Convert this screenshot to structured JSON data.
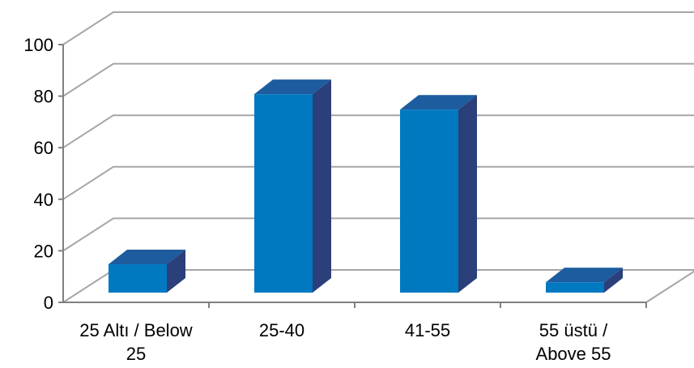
{
  "chart_data": {
    "type": "bar",
    "three_d": true,
    "categories": [
      "25 Altı / Below 25",
      "25-40",
      "41-55",
      "55 üstü / Above 55"
    ],
    "category_label_lines": [
      [
        "25 Altı / Below",
        "25"
      ],
      [
        "25-40"
      ],
      [
        "41-55"
      ],
      [
        "55 üstü /",
        "Above 55"
      ]
    ],
    "values": [
      11,
      77,
      71,
      4
    ],
    "y_ticks": [
      "0",
      "20",
      "40",
      "60",
      "80",
      "100"
    ],
    "ylim": [
      0,
      100
    ],
    "grid": true,
    "legend": "none",
    "title": "",
    "xlabel": "",
    "ylabel": "",
    "colors": {
      "bar_front": "#0079C1",
      "bar_top": "#1D5C9E",
      "bar_side": "#2B3F7A",
      "grid": "#A6A6A6",
      "axis": "#808080"
    }
  }
}
